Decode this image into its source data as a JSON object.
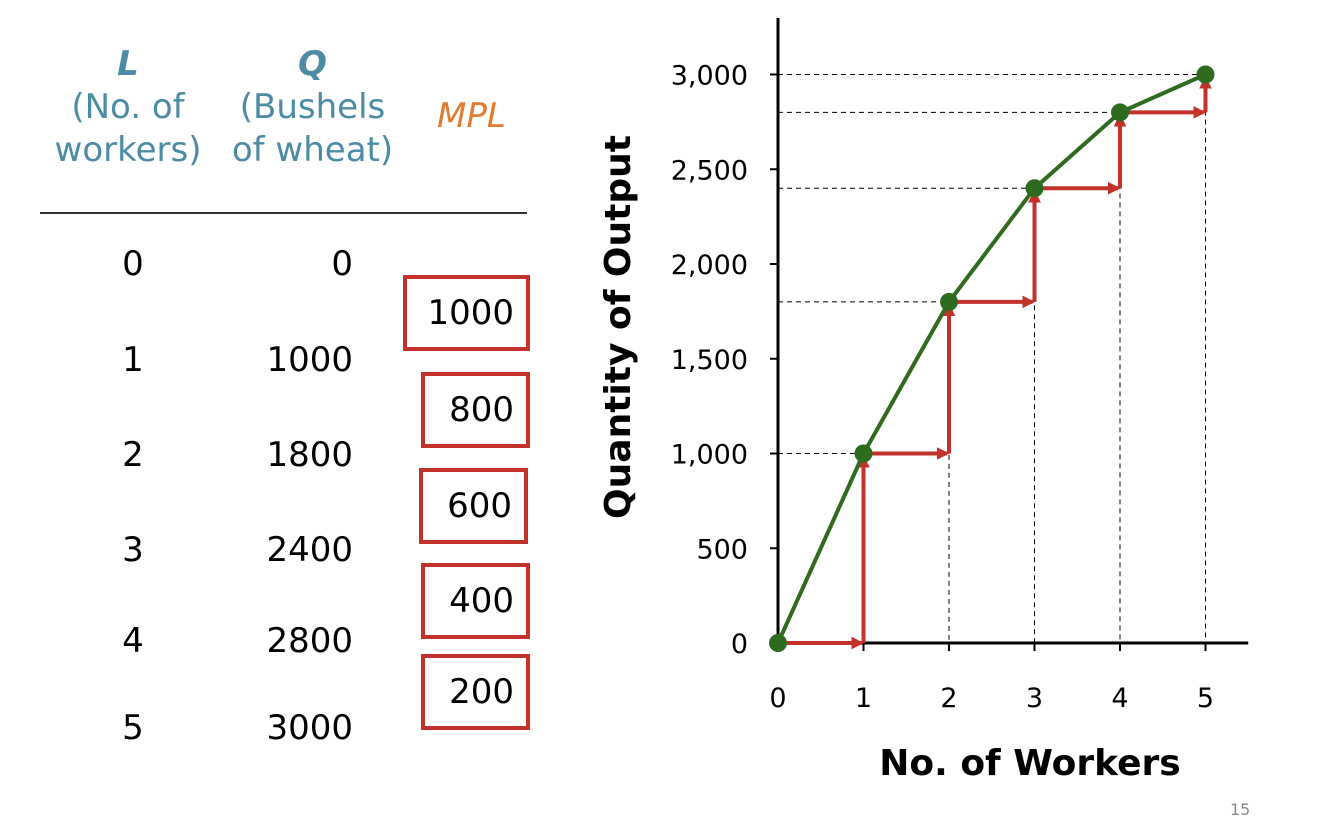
{
  "table": {
    "headers": {
      "l_symbol": "L",
      "l_desc_1": "(No. of",
      "l_desc_2": "workers)",
      "q_symbol": "Q",
      "q_desc_1": "(Bushels",
      "q_desc_2": "of wheat)",
      "mpl": "MPL"
    },
    "rows": [
      {
        "L": "0",
        "Q": "0"
      },
      {
        "L": "1",
        "Q": "1000"
      },
      {
        "L": "2",
        "Q": "1800"
      },
      {
        "L": "3",
        "Q": "2400"
      },
      {
        "L": "4",
        "Q": "2800"
      },
      {
        "L": "5",
        "Q": "3000"
      }
    ],
    "mpl": [
      "1000",
      "800",
      "600",
      "400",
      "200"
    ]
  },
  "chart_data": {
    "type": "line",
    "xlabel": "No. of Workers",
    "ylabel": "Quantity of Output",
    "x": [
      0,
      1,
      2,
      3,
      4,
      5
    ],
    "series": [
      {
        "values": [
          0,
          1000,
          1800,
          2400,
          2800,
          3000
        ]
      }
    ],
    "x_ticks": [
      "0",
      "1",
      "2",
      "3",
      "4",
      "5"
    ],
    "y_ticks": [
      "0",
      "500",
      "1,000",
      "1,500",
      "2,000",
      "2,500",
      "3,000"
    ],
    "y_tick_values": [
      0,
      500,
      1000,
      1500,
      2000,
      2500,
      3000
    ],
    "xlim": [
      0,
      5.5
    ],
    "ylim": [
      0,
      3300
    ],
    "grid": false,
    "colors": {
      "line": "#2e6b1f",
      "step_arrows": "#c3312b",
      "guides": "#000000"
    }
  },
  "page_number": "15"
}
